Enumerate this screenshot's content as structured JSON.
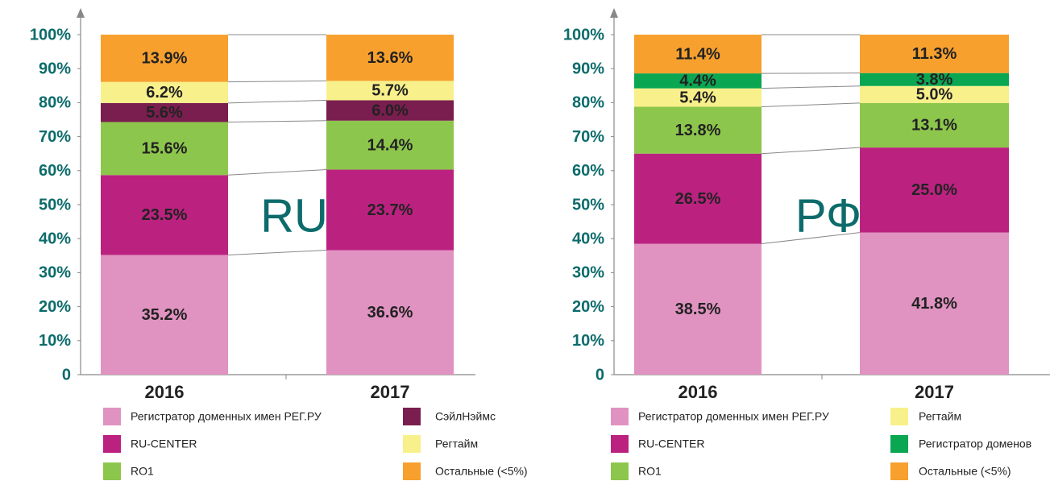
{
  "chart_data": [
    {
      "type": "bar",
      "stacked": true,
      "annotation": "RU",
      "categories": [
        "2016",
        "2017"
      ],
      "ylim": [
        0,
        100
      ],
      "yticks": [
        0,
        {
          "value": 10,
          "label": "10%"
        },
        {
          "value": 20,
          "label": "20%"
        },
        {
          "value": 30,
          "label": "30%"
        },
        {
          "value": 40,
          "label": "40%"
        },
        {
          "value": 50,
          "label": "50%"
        },
        {
          "value": 60,
          "label": "60%"
        },
        {
          "value": 70,
          "label": "70%"
        },
        {
          "value": 80,
          "label": "80%"
        },
        {
          "value": 90,
          "label": "90%"
        },
        {
          "value": 100,
          "label": "100%"
        }
      ],
      "series": [
        {
          "name": "Регистратор доменных имен РЕГ.РУ",
          "color": "#e093c1",
          "values": [
            35.2,
            36.6
          ],
          "value_labels": [
            "35.2%",
            "36.6%"
          ]
        },
        {
          "name": "RU-CENTER",
          "color": "#bb2280",
          "values": [
            23.5,
            23.7
          ],
          "value_labels": [
            "23.5%",
            "23.7%"
          ]
        },
        {
          "name": "RO1",
          "color": "#8dc64c",
          "values": [
            15.6,
            14.4
          ],
          "value_labels": [
            "15.6%",
            "14.4%"
          ]
        },
        {
          "name": "СэйлНэймс",
          "color": "#7a1e4f",
          "values": [
            5.6,
            6
          ],
          "value_labels": [
            "5.6%",
            "6.0%"
          ]
        },
        {
          "name": "Регтайм",
          "color": "#f8f08a",
          "values": [
            6.2,
            5.7
          ],
          "value_labels": [
            "6.2%",
            "5.7%"
          ]
        },
        {
          "name": "Остальные (<5%)",
          "color": "#f7a02e",
          "values": [
            13.9,
            13.6
          ],
          "value_labels": [
            "13.9%",
            "13.6%"
          ]
        }
      ]
    },
    {
      "type": "bar",
      "stacked": true,
      "annotation": "РФ",
      "categories": [
        "2016",
        "2017"
      ],
      "ylim": [
        0,
        100
      ],
      "yticks": [
        0,
        {
          "value": 10,
          "label": "10%"
        },
        {
          "value": 20,
          "label": "20%"
        },
        {
          "value": 30,
          "label": "30%"
        },
        {
          "value": 40,
          "label": "40%"
        },
        {
          "value": 50,
          "label": "50%"
        },
        {
          "value": 60,
          "label": "60%"
        },
        {
          "value": 70,
          "label": "70%"
        },
        {
          "value": 80,
          "label": "80%"
        },
        {
          "value": 90,
          "label": "90%"
        },
        {
          "value": 100,
          "label": "100%"
        }
      ],
      "series": [
        {
          "name": "Регистратор доменных имен РЕГ.РУ",
          "color": "#e093c1",
          "values": [
            38.5,
            41.8
          ],
          "value_labels": [
            "38.5%",
            "41.8%"
          ]
        },
        {
          "name": "RU-CENTER",
          "color": "#bb2280",
          "values": [
            26.5,
            25
          ],
          "value_labels": [
            "26.5%",
            "25.0%"
          ]
        },
        {
          "name": "RO1",
          "color": "#8dc64c",
          "values": [
            13.8,
            13.1
          ],
          "value_labels": [
            "13.8%",
            "13.1%"
          ]
        },
        {
          "name": "Регтайм",
          "color": "#f8f08a",
          "values": [
            5.4,
            5
          ],
          "value_labels": [
            "5.4%",
            "5.0%"
          ]
        },
        {
          "name": "Регистратор доменов",
          "color": "#0aa652",
          "values": [
            4.4,
            3.8
          ],
          "value_labels": [
            "4.4%",
            "3.8%"
          ]
        },
        {
          "name": "Остальные (<5%)",
          "color": "#f7a02e",
          "values": [
            11.4,
            11.3
          ],
          "value_labels": [
            "11.4%",
            "11.3%"
          ]
        }
      ]
    }
  ]
}
